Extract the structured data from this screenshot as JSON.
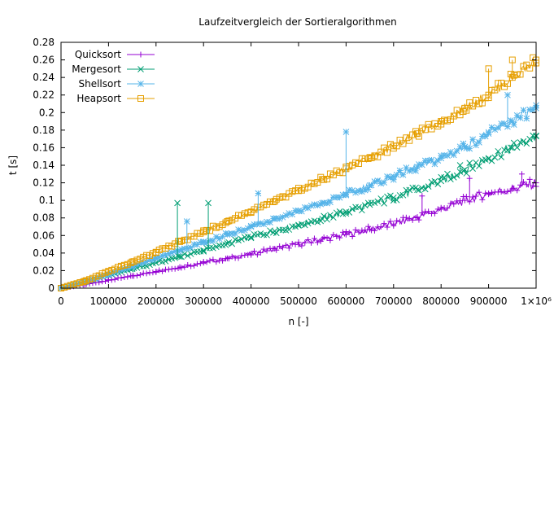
{
  "chart_data": {
    "type": "line",
    "title": "Laufzeitvergleich der Sortieralgorithmen",
    "xlabel": "n [-]",
    "ylabel": "t [s]",
    "xlim": [
      0,
      1000000
    ],
    "ylim": [
      0,
      0.28
    ],
    "x_ticks": [
      "0",
      "100000",
      "200000",
      "300000",
      "400000",
      "500000",
      "600000",
      "700000",
      "800000",
      "900000"
    ],
    "x_axis_multiplier": "×10⁶",
    "y_ticks": [
      "0",
      "0.02",
      "0.04",
      "0.06",
      "0.08",
      "0.1",
      "0.12",
      "0.14",
      "0.16",
      "0.18",
      "0.2",
      "0.22",
      "0.24",
      "0.26",
      "0.28"
    ],
    "grid": false,
    "legend_position": "top-left",
    "x": [
      0,
      50000,
      100000,
      150000,
      200000,
      250000,
      300000,
      350000,
      400000,
      450000,
      500000,
      550000,
      600000,
      650000,
      700000,
      750000,
      800000,
      850000,
      900000,
      950000,
      1000000
    ],
    "series": [
      {
        "name": "Quicksort",
        "color": "#9400d3",
        "marker": "plus",
        "values": [
          0.0,
          0.004,
          0.009,
          0.014,
          0.019,
          0.024,
          0.029,
          0.034,
          0.039,
          0.045,
          0.05,
          0.056,
          0.061,
          0.067,
          0.073,
          0.081,
          0.09,
          0.1,
          0.108,
          0.113,
          0.12
        ]
      },
      {
        "name": "Mergesort",
        "color": "#009e73",
        "marker": "cross",
        "values": [
          0.0,
          0.007,
          0.015,
          0.022,
          0.029,
          0.036,
          0.043,
          0.051,
          0.058,
          0.065,
          0.072,
          0.079,
          0.087,
          0.095,
          0.103,
          0.112,
          0.122,
          0.135,
          0.148,
          0.16,
          0.173
        ]
      },
      {
        "name": "Shellsort",
        "color": "#56b4e9",
        "marker": "star",
        "values": [
          0.0,
          0.007,
          0.016,
          0.025,
          0.034,
          0.043,
          0.052,
          0.061,
          0.07,
          0.079,
          0.088,
          0.097,
          0.107,
          0.117,
          0.127,
          0.138,
          0.148,
          0.161,
          0.176,
          0.19,
          0.205
        ]
      },
      {
        "name": "Heapsort",
        "color": "#e69f00",
        "marker": "square",
        "values": [
          0.0,
          0.008,
          0.019,
          0.03,
          0.041,
          0.053,
          0.064,
          0.076,
          0.087,
          0.099,
          0.111,
          0.124,
          0.136,
          0.149,
          0.162,
          0.176,
          0.19,
          0.205,
          0.22,
          0.24,
          0.26
        ]
      }
    ],
    "outliers": [
      {
        "series": "Quicksort",
        "x": 760000,
        "y": 0.105
      },
      {
        "series": "Quicksort",
        "x": 860000,
        "y": 0.125
      },
      {
        "series": "Quicksort",
        "x": 970000,
        "y": 0.13
      },
      {
        "series": "Mergesort",
        "x": 245000,
        "y": 0.097
      },
      {
        "series": "Mergesort",
        "x": 310000,
        "y": 0.097
      },
      {
        "series": "Mergesort",
        "x": 840000,
        "y": 0.14
      },
      {
        "series": "Shellsort",
        "x": 265000,
        "y": 0.076
      },
      {
        "series": "Shellsort",
        "x": 415000,
        "y": 0.108
      },
      {
        "series": "Shellsort",
        "x": 600000,
        "y": 0.178
      },
      {
        "series": "Shellsort",
        "x": 940000,
        "y": 0.22
      },
      {
        "series": "Heapsort",
        "x": 900000,
        "y": 0.25
      },
      {
        "series": "Heapsort",
        "x": 950000,
        "y": 0.26
      }
    ]
  }
}
